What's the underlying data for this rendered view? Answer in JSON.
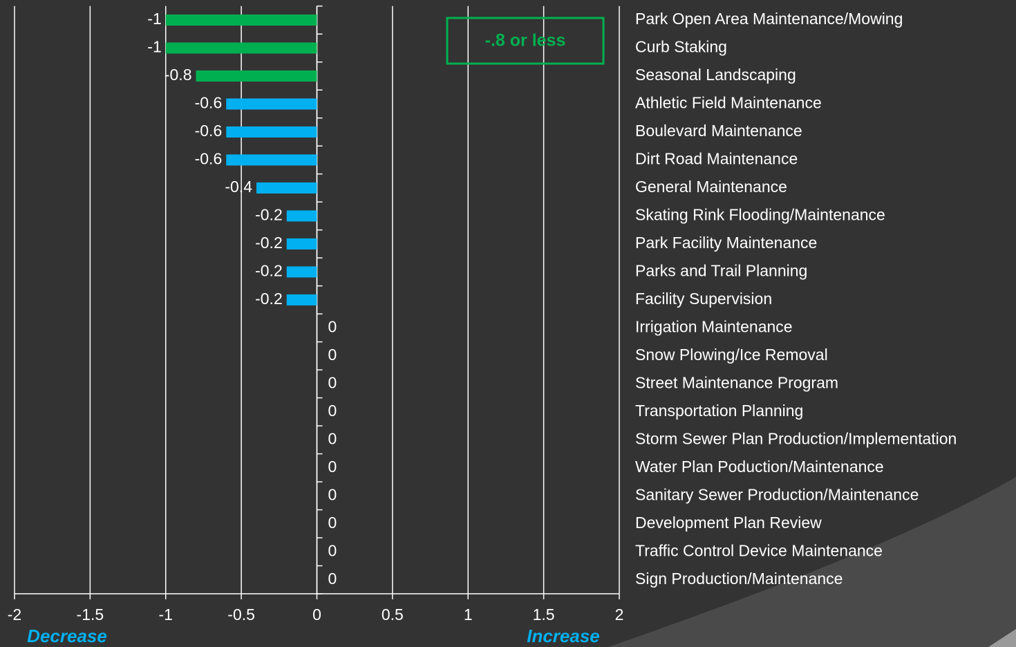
{
  "chart_data": {
    "type": "bar",
    "orientation": "horizontal",
    "categories": [
      "Park Open Area Maintenance/Mowing",
      "Curb Staking",
      "Seasonal Landscaping",
      "Athletic Field Maintenance",
      "Boulevard Maintenance",
      "Dirt Road Maintenance",
      "General Maintenance",
      "Skating Rink Flooding/Maintenance",
      "Park Facility Maintenance",
      "Parks and Trail Planning",
      "Facility Supervision",
      "Irrigation Maintenance",
      "Snow Plowing/Ice Removal",
      "Street Maintenance Program",
      "Transportation Planning",
      "Storm Sewer Plan Production/Implementation",
      "Water Plan Poduction/Maintenance",
      "Sanitary Sewer Production/Maintenance",
      "Development Plan Review",
      "Traffic Control Device Maintenance",
      "Sign Production/Maintenance"
    ],
    "values": [
      -1,
      -1,
      -0.8,
      -0.6,
      -0.6,
      -0.6,
      -0.4,
      -0.2,
      -0.2,
      -0.2,
      -0.2,
      0,
      0,
      0,
      0,
      0,
      0,
      0,
      0,
      0,
      0
    ],
    "colors": [
      "#00b050",
      "#00b050",
      "#00b050",
      "#00b0f0",
      "#00b0f0",
      "#00b0f0",
      "#00b0f0",
      "#00b0f0",
      "#00b0f0",
      "#00b0f0",
      "#00b0f0",
      "#00b0f0",
      "#00b0f0",
      "#00b0f0",
      "#00b0f0",
      "#00b0f0",
      "#00b0f0",
      "#00b0f0",
      "#00b0f0",
      "#00b0f0",
      "#00b0f0"
    ],
    "xlim": [
      -2,
      2
    ],
    "xticks": [
      -2,
      -1.5,
      -1,
      -0.5,
      0,
      0.5,
      1,
      1.5,
      2
    ],
    "grid": true,
    "annotations": {
      "box": "-.8 or less",
      "left": "Decrease",
      "right": "Increase"
    }
  }
}
